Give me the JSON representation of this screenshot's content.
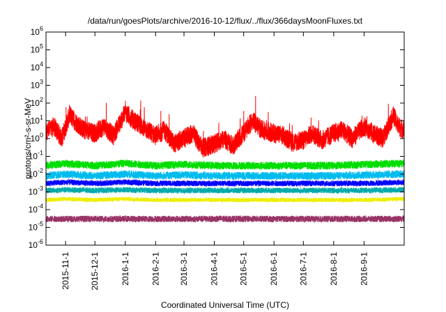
{
  "chart_data": {
    "type": "line",
    "title": "/data/run/goesPlots/archive/2016-10-12/flux/../flux/366daysMoonFluxes.txt",
    "xlabel": "Coordinated Universal Time (UTC)",
    "ylabel": "protons/cm²-s-sr-MeV",
    "yscale": "log",
    "ylim": [
      1e-06,
      1000000.0
    ],
    "xlim": [
      "2015-10-12",
      "2016-10-12"
    ],
    "grid": false,
    "legend": "none",
    "y_ticks": [
      {
        "value": 1e-06,
        "base": "10",
        "exp": "-6"
      },
      {
        "value": 1e-05,
        "base": "10",
        "exp": "-5"
      },
      {
        "value": 0.0001,
        "base": "10",
        "exp": "-4"
      },
      {
        "value": 0.001,
        "base": "10",
        "exp": "-3"
      },
      {
        "value": 0.01,
        "base": "10",
        "exp": "-2"
      },
      {
        "value": 0.1,
        "base": "10",
        "exp": "-1"
      },
      {
        "value": 1.0,
        "base": "10",
        "exp": "0"
      },
      {
        "value": 10.0,
        "base": "10",
        "exp": "1"
      },
      {
        "value": 100.0,
        "base": "10",
        "exp": "2"
      },
      {
        "value": 1000.0,
        "base": "10",
        "exp": "3"
      },
      {
        "value": 10000.0,
        "base": "10",
        "exp": "4"
      },
      {
        "value": 100000.0,
        "base": "10",
        "exp": "5"
      },
      {
        "value": 1000000.0,
        "base": "10",
        "exp": "6"
      }
    ],
    "x_ticks": [
      {
        "date": "2015-11-01",
        "label": "2015-11-1"
      },
      {
        "date": "2015-12-01",
        "label": "2015-12-1"
      },
      {
        "date": "2016-01-01",
        "label": "2016-1-1"
      },
      {
        "date": "2016-02-01",
        "label": "2016-2-1"
      },
      {
        "date": "2016-03-01",
        "label": "2016-3-1"
      },
      {
        "date": "2016-04-01",
        "label": "2016-4-1"
      },
      {
        "date": "2016-05-01",
        "label": "2016-5-1"
      },
      {
        "date": "2016-06-01",
        "label": "2016-6-1"
      },
      {
        "date": "2016-07-01",
        "label": "2016-7-1"
      },
      {
        "date": "2016-08-01",
        "label": "2016-8-1"
      },
      {
        "date": "2016-09-01",
        "label": "2016-9-1"
      }
    ],
    "series": [
      {
        "color": "#ff0000",
        "values": [
          [
            "2015-10-12",
            2.0
          ],
          [
            "2015-10-20",
            5.0
          ],
          [
            "2015-10-28",
            1.0
          ],
          [
            "2015-11-05",
            20
          ],
          [
            "2015-11-12",
            8
          ],
          [
            "2015-11-20",
            3
          ],
          [
            "2015-12-01",
            2
          ],
          [
            "2015-12-10",
            5
          ],
          [
            "2015-12-20",
            1.5
          ],
          [
            "2016-01-01",
            30
          ],
          [
            "2016-01-10",
            10
          ],
          [
            "2016-01-20",
            4
          ],
          [
            "2016-02-01",
            1.5
          ],
          [
            "2016-02-10",
            3
          ],
          [
            "2016-02-20",
            0.5
          ],
          [
            "2016-03-01",
            1.0
          ],
          [
            "2016-03-10",
            2
          ],
          [
            "2016-03-20",
            0.3
          ],
          [
            "2016-04-01",
            0.5
          ],
          [
            "2016-04-10",
            1.0
          ],
          [
            "2016-04-20",
            0.4
          ],
          [
            "2016-05-01",
            2
          ],
          [
            "2016-05-10",
            10
          ],
          [
            "2016-05-20",
            3
          ],
          [
            "2016-06-01",
            2
          ],
          [
            "2016-06-10",
            1.5
          ],
          [
            "2016-06-20",
            0.6
          ],
          [
            "2016-07-01",
            0.8
          ],
          [
            "2016-07-10",
            2
          ],
          [
            "2016-07-20",
            0.8
          ],
          [
            "2016-08-01",
            2
          ],
          [
            "2016-08-10",
            3
          ],
          [
            "2016-08-20",
            1.0
          ],
          [
            "2016-09-01",
            5
          ],
          [
            "2016-09-10",
            2
          ],
          [
            "2016-09-20",
            1.0
          ],
          [
            "2016-10-01",
            20
          ],
          [
            "2016-10-06",
            5
          ],
          [
            "2016-10-12",
            3
          ]
        ]
      },
      {
        "color": "#00dd00",
        "values": [
          [
            "2015-10-12",
            0.03
          ],
          [
            "2015-11-01",
            0.04
          ],
          [
            "2015-12-01",
            0.03
          ],
          [
            "2016-01-01",
            0.04
          ],
          [
            "2016-02-01",
            0.03
          ],
          [
            "2016-03-01",
            0.035
          ],
          [
            "2016-04-01",
            0.03
          ],
          [
            "2016-05-01",
            0.03
          ],
          [
            "2016-06-01",
            0.03
          ],
          [
            "2016-07-01",
            0.03
          ],
          [
            "2016-08-01",
            0.03
          ],
          [
            "2016-09-01",
            0.035
          ],
          [
            "2016-10-12",
            0.04
          ]
        ]
      },
      {
        "color": "#00bbee",
        "values": [
          [
            "2015-10-12",
            0.008
          ],
          [
            "2015-11-01",
            0.01
          ],
          [
            "2015-12-01",
            0.008
          ],
          [
            "2016-01-01",
            0.01
          ],
          [
            "2016-02-01",
            0.008
          ],
          [
            "2016-03-01",
            0.009
          ],
          [
            "2016-04-01",
            0.008
          ],
          [
            "2016-05-01",
            0.008
          ],
          [
            "2016-06-01",
            0.008
          ],
          [
            "2016-07-01",
            0.008
          ],
          [
            "2016-08-01",
            0.008
          ],
          [
            "2016-09-01",
            0.009
          ],
          [
            "2016-10-12",
            0.01
          ]
        ]
      },
      {
        "color": "#0000ff",
        "values": [
          [
            "2015-10-12",
            0.003
          ],
          [
            "2015-11-01",
            0.0035
          ],
          [
            "2015-12-01",
            0.003
          ],
          [
            "2016-01-01",
            0.0035
          ],
          [
            "2016-02-01",
            0.003
          ],
          [
            "2016-03-01",
            0.003
          ],
          [
            "2016-04-01",
            0.003
          ],
          [
            "2016-05-01",
            0.003
          ],
          [
            "2016-06-01",
            0.003
          ],
          [
            "2016-07-01",
            0.003
          ],
          [
            "2016-08-01",
            0.003
          ],
          [
            "2016-09-01",
            0.003
          ],
          [
            "2016-10-12",
            0.0035
          ]
        ]
      },
      {
        "color": "#00aaaa",
        "values": [
          [
            "2015-10-12",
            0.0012
          ],
          [
            "2015-11-01",
            0.0013
          ],
          [
            "2015-12-01",
            0.0012
          ],
          [
            "2016-01-01",
            0.0013
          ],
          [
            "2016-02-01",
            0.0012
          ],
          [
            "2016-03-01",
            0.0012
          ],
          [
            "2016-04-01",
            0.0012
          ],
          [
            "2016-05-01",
            0.0012
          ],
          [
            "2016-06-01",
            0.0012
          ],
          [
            "2016-07-01",
            0.0012
          ],
          [
            "2016-08-01",
            0.0012
          ],
          [
            "2016-09-01",
            0.0012
          ],
          [
            "2016-10-12",
            0.0013
          ]
        ]
      },
      {
        "color": "#eeee00",
        "values": [
          [
            "2015-10-12",
            0.00035
          ],
          [
            "2015-11-01",
            0.0004
          ],
          [
            "2015-12-01",
            0.00035
          ],
          [
            "2016-01-01",
            0.0004
          ],
          [
            "2016-02-01",
            0.00035
          ],
          [
            "2016-03-01",
            0.00035
          ],
          [
            "2016-04-01",
            0.00035
          ],
          [
            "2016-05-01",
            0.00035
          ],
          [
            "2016-06-01",
            0.00035
          ],
          [
            "2016-07-01",
            0.00035
          ],
          [
            "2016-08-01",
            0.00035
          ],
          [
            "2016-09-01",
            0.00035
          ],
          [
            "2016-10-12",
            0.0004
          ]
        ]
      },
      {
        "color": "#993366",
        "values": [
          [
            "2015-10-12",
            3e-05
          ],
          [
            "2015-11-01",
            3e-05
          ],
          [
            "2015-12-01",
            3e-05
          ],
          [
            "2016-01-01",
            3e-05
          ],
          [
            "2016-02-01",
            3e-05
          ],
          [
            "2016-03-01",
            3e-05
          ],
          [
            "2016-04-01",
            3e-05
          ],
          [
            "2016-05-01",
            3e-05
          ],
          [
            "2016-06-01",
            3e-05
          ],
          [
            "2016-07-01",
            3e-05
          ],
          [
            "2016-08-01",
            3e-05
          ],
          [
            "2016-09-01",
            3e-05
          ],
          [
            "2016-10-12",
            3e-05
          ]
        ]
      }
    ]
  }
}
